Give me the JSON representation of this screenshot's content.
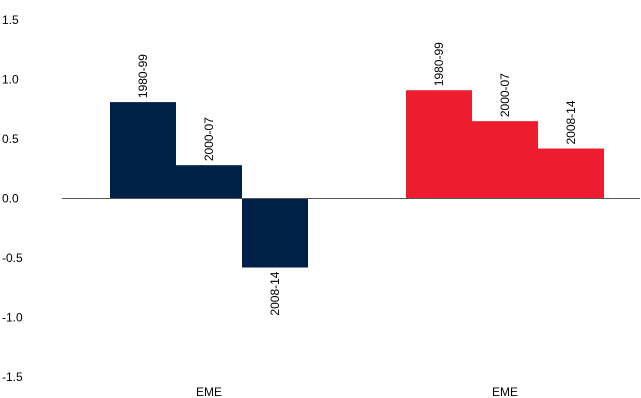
{
  "chart_data": {
    "type": "bar",
    "title": "",
    "xlabel": "",
    "ylabel": "",
    "ylim": [
      -1.5,
      1.5
    ],
    "yticks": [
      "1.5",
      "1.0",
      "0.5",
      "0.0",
      "-0.5",
      "-1.0",
      "-1.5"
    ],
    "grid": false,
    "legend": "none",
    "groups": [
      {
        "category": "EME",
        "color": "#002147",
        "bars": [
          {
            "label": "1980-99",
            "value": 0.81
          },
          {
            "label": "2000-07",
            "value": 0.28
          },
          {
            "label": "2008-14",
            "value": -0.58
          }
        ]
      },
      {
        "category": "EME",
        "color": "#ed1c2e",
        "bars": [
          {
            "label": "1980-99",
            "value": 0.91
          },
          {
            "label": "2000-07",
            "value": 0.65
          },
          {
            "label": "2008-14",
            "value": 0.42
          }
        ]
      }
    ]
  }
}
